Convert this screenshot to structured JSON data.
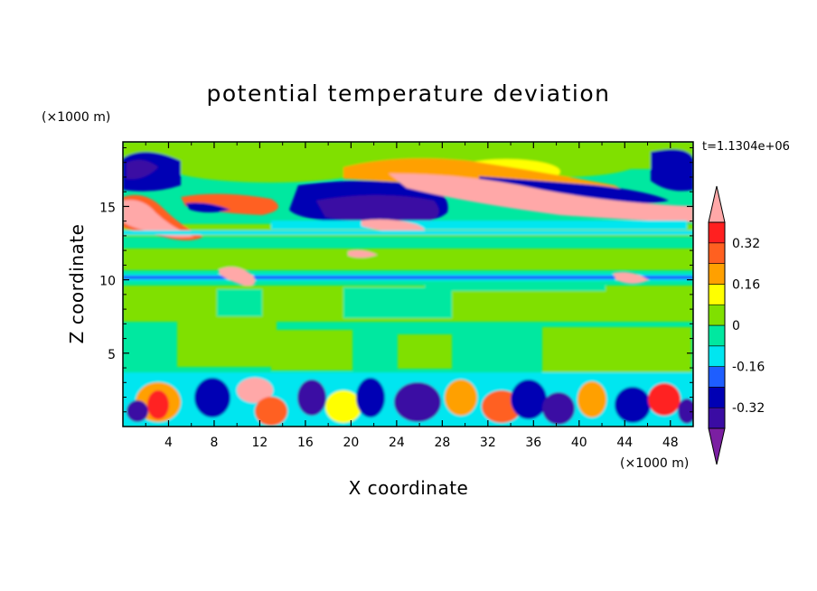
{
  "chart_data": {
    "type": "heatmap",
    "title": "potential temperature deviation",
    "xlabel": "X coordinate",
    "ylabel": "Z coordinate",
    "x_unit": "(×1000 m)",
    "y_unit": "(×1000 m)",
    "time_label": "t=1.1304e+06",
    "xlim": [
      0,
      50
    ],
    "ylim": [
      0,
      19.4
    ],
    "x_ticks": [
      4,
      8,
      12,
      16,
      20,
      24,
      28,
      32,
      36,
      40,
      44,
      48
    ],
    "x_tick_labels": [
      "4",
      "8",
      "12",
      "16",
      "20",
      "24",
      "28",
      "32",
      "36",
      "40",
      "44",
      "48"
    ],
    "y_ticks": [
      5,
      10,
      15
    ],
    "y_tick_labels": [
      "5",
      "10",
      "15"
    ],
    "colorbar": {
      "levels": [
        -0.4,
        -0.32,
        -0.24,
        -0.16,
        -0.08,
        0,
        0.08,
        0.16,
        0.24,
        0.32,
        0.4
      ],
      "tick_values": [
        -0.32,
        -0.16,
        0,
        0.16,
        0.32
      ],
      "tick_labels": [
        "-0.32",
        "-0.16",
        "0",
        "0.16",
        "0.32"
      ],
      "colors": [
        "#7b1fa2",
        "#3a0ca3",
        "#0000b4",
        "#1e5eff",
        "#00e6f0",
        "#00e8a0",
        "#80e000",
        "#ffff00",
        "#ffa000",
        "#ff6020",
        "#ff2020",
        "#ffa8a8"
      ],
      "extend": "both"
    },
    "grid": false,
    "legend": "colorbar right"
  }
}
